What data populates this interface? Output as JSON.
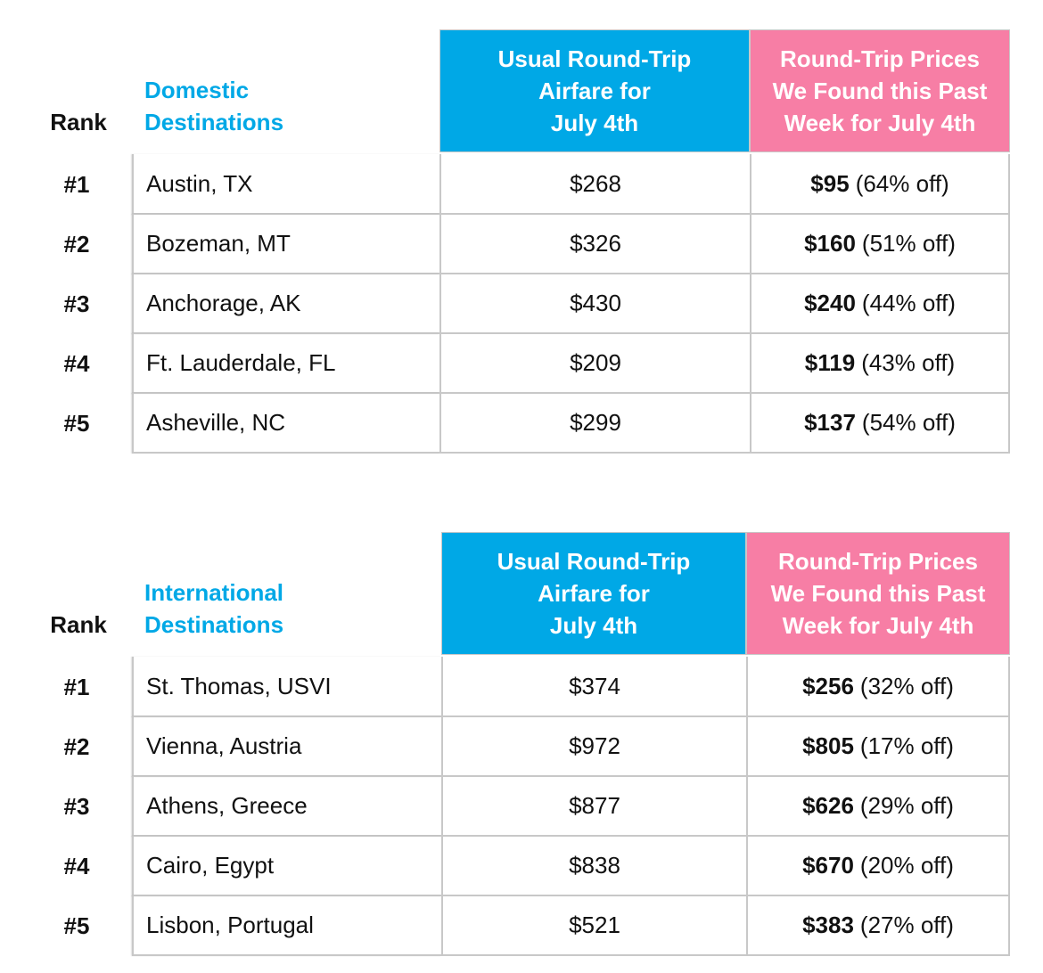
{
  "colors": {
    "accent_blue": "#00a8e6",
    "accent_pink": "#f77ea5",
    "grid_line": "#c8c8c8"
  },
  "chart_data": [
    {
      "type": "table",
      "rank_header": "Rank",
      "destination_header": "Domestic\nDestinations",
      "usual_header": "Usual Round-Trip\nAirfare for\nJuly 4th",
      "found_header": "Round-Trip Prices\nWe Found this Past\nWeek for July 4th",
      "rows": [
        {
          "rank": "#1",
          "destination": "Austin, TX",
          "usual": "$268",
          "found": "$95",
          "discount": "(64% off)"
        },
        {
          "rank": "#2",
          "destination": "Bozeman, MT",
          "usual": "$326",
          "found": "$160",
          "discount": "(51% off)"
        },
        {
          "rank": "#3",
          "destination": "Anchorage, AK",
          "usual": "$430",
          "found": "$240",
          "discount": "(44% off)"
        },
        {
          "rank": "#4",
          "destination": "Ft. Lauderdale, FL",
          "usual": "$209",
          "found": "$119",
          "discount": "(43% off)"
        },
        {
          "rank": "#5",
          "destination": "Asheville, NC",
          "usual": "$299",
          "found": "$137",
          "discount": "(54% off)"
        }
      ]
    },
    {
      "type": "table",
      "rank_header": "Rank",
      "destination_header": "International\nDestinations",
      "usual_header": "Usual Round-Trip\nAirfare for\nJuly 4th",
      "found_header": "Round-Trip Prices\nWe Found this Past\nWeek for July 4th",
      "rows": [
        {
          "rank": "#1",
          "destination": "St. Thomas, USVI",
          "usual": "$374",
          "found": "$256",
          "discount": "(32% off)"
        },
        {
          "rank": "#2",
          "destination": "Vienna, Austria",
          "usual": "$972",
          "found": "$805",
          "discount": "(17% off)"
        },
        {
          "rank": "#3",
          "destination": "Athens, Greece",
          "usual": "$877",
          "found": "$626",
          "discount": "(29% off)"
        },
        {
          "rank": "#4",
          "destination": "Cairo, Egypt",
          "usual": "$838",
          "found": "$670",
          "discount": "(20% off)"
        },
        {
          "rank": "#5",
          "destination": "Lisbon, Portugal",
          "usual": "$521",
          "found": "$383",
          "discount": "(27% off)"
        }
      ]
    }
  ]
}
